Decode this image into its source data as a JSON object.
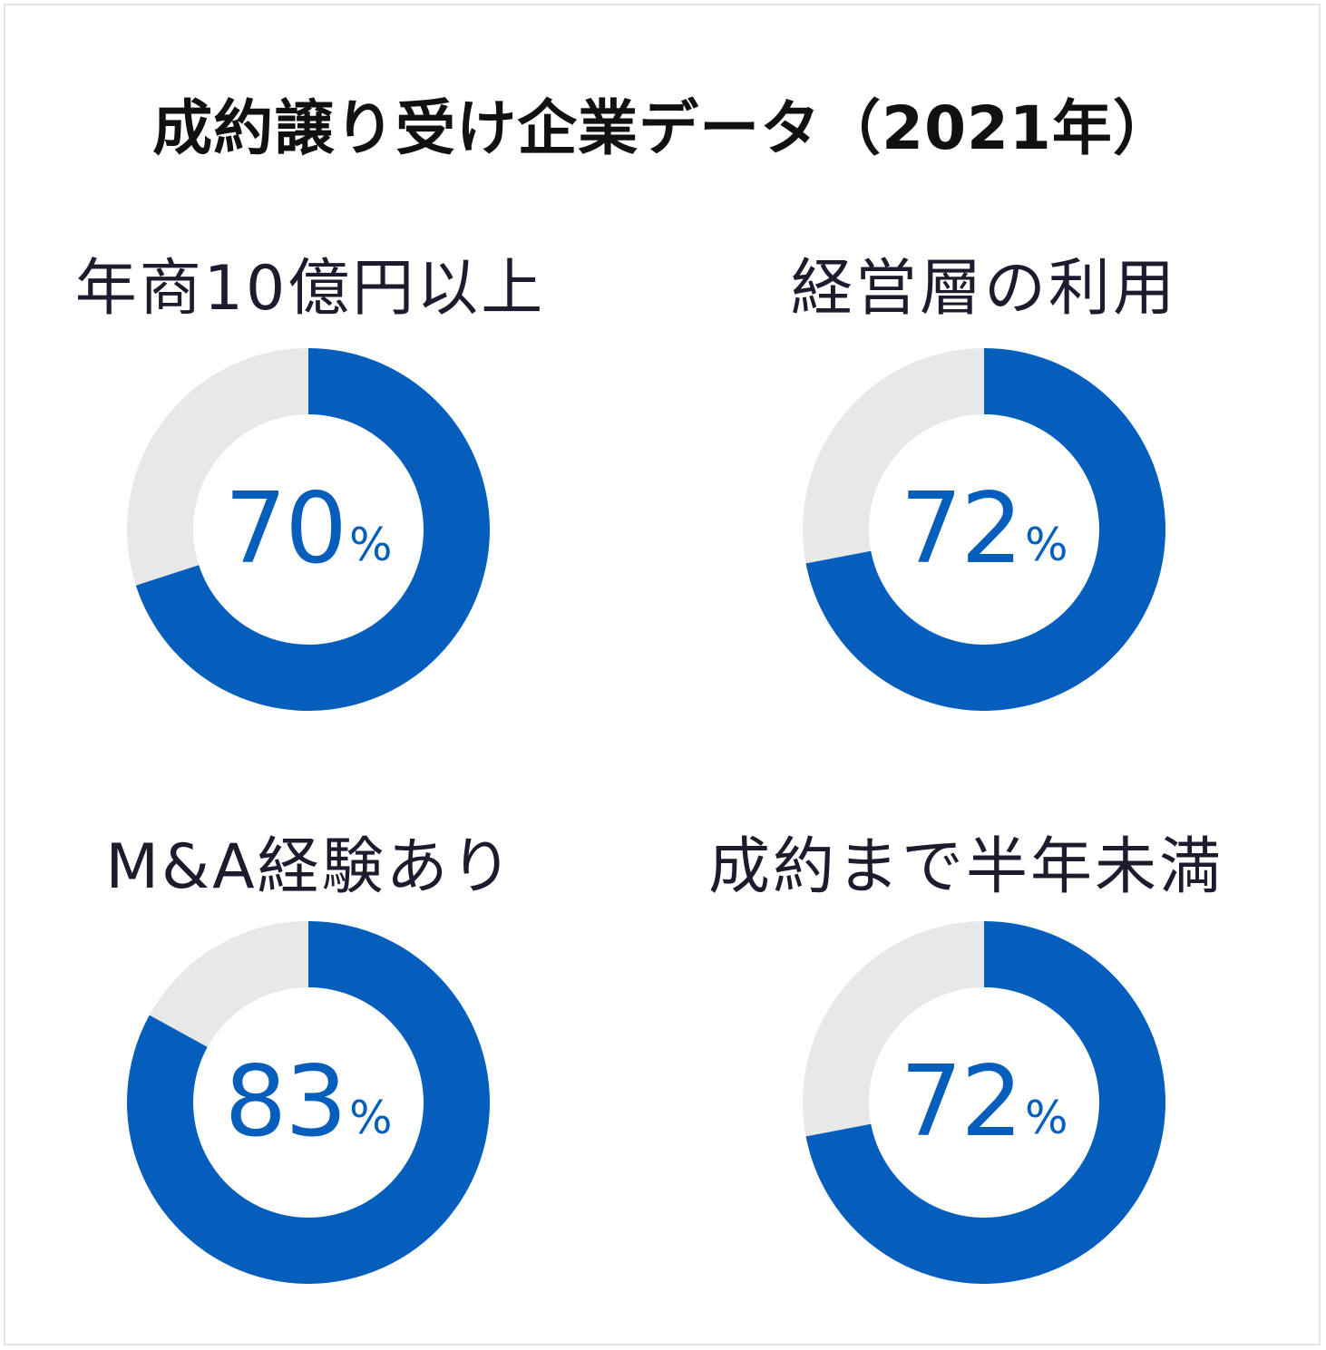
{
  "title": "成約譲り受け企業データ（2021年）",
  "colors": {
    "accent": "#065ebc",
    "track": "#e8e8e8",
    "title": "#111111",
    "label": "#1c1c2e"
  },
  "chart_data": [
    {
      "type": "pie",
      "label": "年商10億円以上",
      "value": 70,
      "value_text": "70",
      "unit": "%"
    },
    {
      "type": "pie",
      "label": "経営層の利用",
      "value": 72,
      "value_text": "72",
      "unit": "%"
    },
    {
      "type": "pie",
      "label": "M&A経験あり",
      "value": 83,
      "value_text": "83",
      "unit": "%"
    },
    {
      "type": "pie",
      "label": "成約まで半年未満",
      "value": 72,
      "value_text": "72",
      "unit": "%"
    }
  ]
}
